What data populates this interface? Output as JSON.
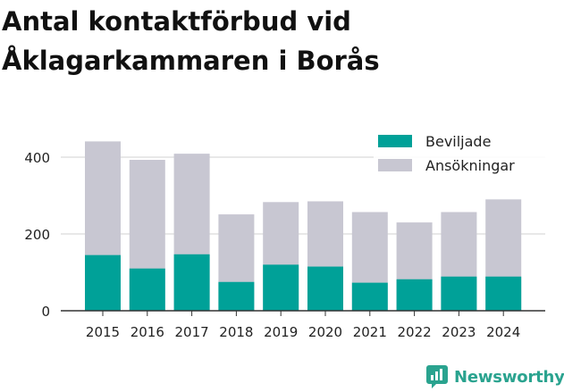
{
  "title": "Antal kontaktförbud vid Åklagarkammaren i Borås",
  "brand": {
    "name": "Newsworthy"
  },
  "colors": {
    "beviljade": "#00a198",
    "ansokningar": "#c8c7d2",
    "text": "#222222",
    "grid": "#d9d9d9",
    "brand": "#2aa38f"
  },
  "chart_data": {
    "type": "bar",
    "stacked": false,
    "categories": [
      "2015",
      "2016",
      "2017",
      "2018",
      "2019",
      "2020",
      "2021",
      "2022",
      "2023",
      "2024"
    ],
    "series": [
      {
        "name": "Ansökningar",
        "values": [
          441,
          393,
          409,
          251,
          283,
          285,
          257,
          230,
          257,
          290
        ]
      },
      {
        "name": "Beviljade",
        "values": [
          145,
          110,
          147,
          75,
          120,
          115,
          73,
          82,
          89,
          89
        ]
      }
    ],
    "legend": [
      "Beviljade",
      "Ansökningar"
    ],
    "legend_position": "top-right",
    "yticks": [
      0,
      200,
      400
    ],
    "ylim": [
      0,
      460
    ],
    "title": "Antal kontaktförbud vid Åklagarkammaren i Borås",
    "xlabel": "",
    "ylabel": ""
  }
}
